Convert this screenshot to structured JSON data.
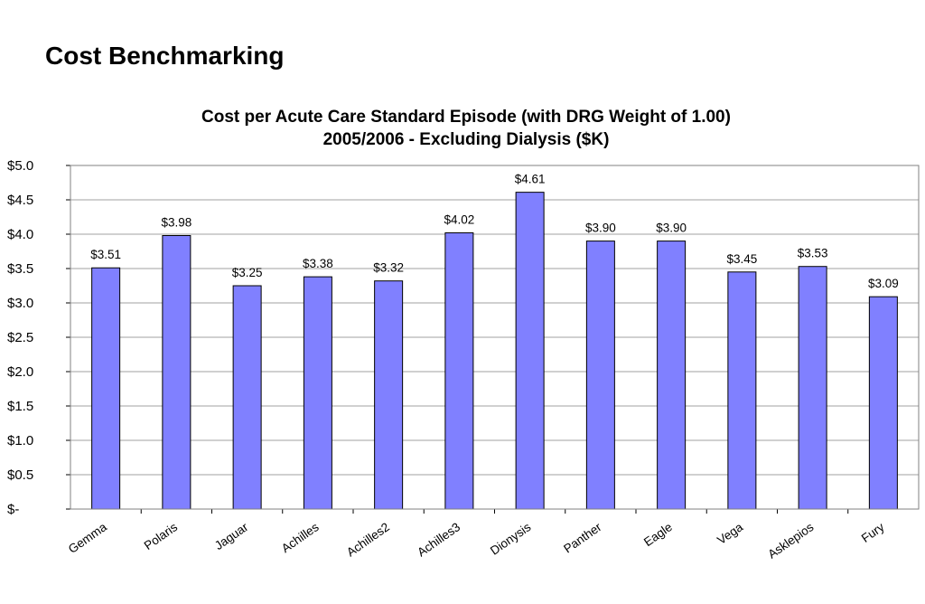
{
  "page": {
    "title": "Cost Benchmarking"
  },
  "chart_data": {
    "type": "bar",
    "title": "Cost per Acute Care Standard Episode (with DRG Weight of 1.00)",
    "subtitle": "2005/2006 - Excluding Dialysis ($K)",
    "categories": [
      "Gemma",
      "Polaris",
      "Jaguar",
      "Achilles",
      "Achilles2",
      "Achilles3",
      "Dionysis",
      "Panther",
      "Eagle",
      "Vega",
      "Asklepios",
      "Fury"
    ],
    "values": [
      3.51,
      3.98,
      3.25,
      3.38,
      3.32,
      4.02,
      4.61,
      3.9,
      3.9,
      3.45,
      3.53,
      3.09
    ],
    "data_labels": [
      "$3.51",
      "$3.98",
      "$3.25",
      "$3.38",
      "$3.32",
      "$4.02",
      "$4.61",
      "$3.90",
      "$3.90",
      "$3.45",
      "$3.53",
      "$3.09"
    ],
    "y_ticks": [
      0,
      0.5,
      1.0,
      1.5,
      2.0,
      2.5,
      3.0,
      3.5,
      4.0,
      4.5,
      5.0
    ],
    "y_tick_labels": [
      "$-",
      "$0.5",
      "$1.0",
      "$1.5",
      "$2.0",
      "$2.5",
      "$3.0",
      "$3.5",
      "$4.0",
      "$4.5",
      "$5.0"
    ],
    "ylim": [
      0,
      5.0
    ],
    "xlabel": "",
    "ylabel": "",
    "grid": true,
    "legend": false,
    "bar_color": "#8080FF",
    "bar_edge_color": "#000000",
    "grid_color": "#A0A0A0"
  }
}
